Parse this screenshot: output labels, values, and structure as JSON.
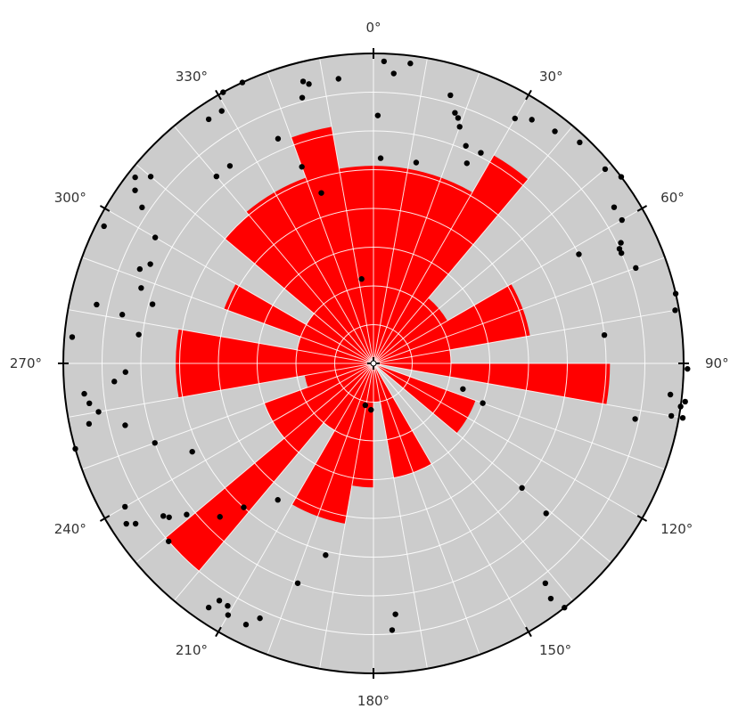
{
  "chart_data": {
    "type": "polar-rose",
    "title": "",
    "angular_unit": "degrees",
    "zero_direction": "top",
    "direction": "clockwise",
    "sector_width_deg": 10,
    "radial_rings": [
      1,
      2,
      3,
      4,
      5,
      6,
      7,
      8
    ],
    "radial_max": 8,
    "angle_tick_labels": [
      "0°",
      "30°",
      "60°",
      "90°",
      "120°",
      "150°",
      "180°",
      "210°",
      "240°",
      "270°",
      "300°",
      "330°"
    ],
    "angle_ticks_deg": [
      0,
      30,
      60,
      90,
      120,
      150,
      180,
      210,
      240,
      270,
      300,
      330
    ],
    "grid": true,
    "sectors": [
      {
        "start": 0,
        "end": 10,
        "value": 5.1
      },
      {
        "start": 10,
        "end": 20,
        "value": 5.1
      },
      {
        "start": 20,
        "end": 30,
        "value": 5.1
      },
      {
        "start": 30,
        "end": 40,
        "value": 6.2
      },
      {
        "start": 40,
        "end": 50,
        "value": 2.2
      },
      {
        "start": 50,
        "end": 60,
        "value": 2.2
      },
      {
        "start": 60,
        "end": 70,
        "value": 4.1
      },
      {
        "start": 70,
        "end": 80,
        "value": 4.1
      },
      {
        "start": 80,
        "end": 90,
        "value": 2.0
      },
      {
        "start": 90,
        "end": 100,
        "value": 6.1
      },
      {
        "start": 110,
        "end": 120,
        "value": 2.8
      },
      {
        "start": 120,
        "end": 130,
        "value": 2.8
      },
      {
        "start": 150,
        "end": 160,
        "value": 3.0
      },
      {
        "start": 160,
        "end": 170,
        "value": 3.0
      },
      {
        "start": 170,
        "end": 180,
        "value": 1.0
      },
      {
        "start": 180,
        "end": 190,
        "value": 3.2
      },
      {
        "start": 190,
        "end": 200,
        "value": 4.2
      },
      {
        "start": 200,
        "end": 210,
        "value": 4.2
      },
      {
        "start": 210,
        "end": 220,
        "value": 2.0
      },
      {
        "start": 220,
        "end": 230,
        "value": 7.0
      },
      {
        "start": 230,
        "end": 240,
        "value": 3.0
      },
      {
        "start": 240,
        "end": 250,
        "value": 3.0
      },
      {
        "start": 250,
        "end": 260,
        "value": 1.8
      },
      {
        "start": 260,
        "end": 270,
        "value": 5.1
      },
      {
        "start": 270,
        "end": 280,
        "value": 5.1
      },
      {
        "start": 280,
        "end": 290,
        "value": 2.0
      },
      {
        "start": 290,
        "end": 300,
        "value": 4.1
      },
      {
        "start": 300,
        "end": 310,
        "value": 2.0
      },
      {
        "start": 310,
        "end": 320,
        "value": 5.0
      },
      {
        "start": 320,
        "end": 330,
        "value": 5.1
      },
      {
        "start": 330,
        "end": 340,
        "value": 5.1
      },
      {
        "start": 340,
        "end": 350,
        "value": 6.2
      },
      {
        "start": 350,
        "end": 360,
        "value": 5.1
      }
    ],
    "points": [
      {
        "theta": 2,
        "r": 7.8
      },
      {
        "theta": 4,
        "r": 7.5
      },
      {
        "theta": 7,
        "r": 7.8
      },
      {
        "theta": 1,
        "r": 6.4
      },
      {
        "theta": 2,
        "r": 5.3
      },
      {
        "theta": 12,
        "r": 5.3
      },
      {
        "theta": 16,
        "r": 7.2
      },
      {
        "theta": 18,
        "r": 6.8
      },
      {
        "theta": 19,
        "r": 6.7
      },
      {
        "theta": 20,
        "r": 6.5
      },
      {
        "theta": 23,
        "r": 6.1
      },
      {
        "theta": 25,
        "r": 5.7
      },
      {
        "theta": 27,
        "r": 6.1
      },
      {
        "theta": 30,
        "r": 7.3
      },
      {
        "theta": 33,
        "r": 7.5
      },
      {
        "theta": 38,
        "r": 7.6
      },
      {
        "theta": 43,
        "r": 7.8
      },
      {
        "theta": 50,
        "r": 7.8
      },
      {
        "theta": 53,
        "r": 8.0
      },
      {
        "theta": 57,
        "r": 7.4
      },
      {
        "theta": 60,
        "r": 7.4
      },
      {
        "theta": 62,
        "r": 6.0
      },
      {
        "theta": 64,
        "r": 7.1
      },
      {
        "theta": 65,
        "r": 7.0
      },
      {
        "theta": 66,
        "r": 7.0
      },
      {
        "theta": 70,
        "r": 7.2
      },
      {
        "theta": 77,
        "r": 8.0
      },
      {
        "theta": 80,
        "r": 7.9
      },
      {
        "theta": 83,
        "r": 6.0
      },
      {
        "theta": 91,
        "r": 8.1
      },
      {
        "theta": 96,
        "r": 7.7
      },
      {
        "theta": 97,
        "r": 8.1
      },
      {
        "theta": 98,
        "r": 8.0
      },
      {
        "theta": 100,
        "r": 8.1
      },
      {
        "theta": 100,
        "r": 7.8
      },
      {
        "theta": 102,
        "r": 6.9
      },
      {
        "theta": 106,
        "r": 2.4
      },
      {
        "theta": 110,
        "r": 3.0
      },
      {
        "theta": 130,
        "r": 5.0
      },
      {
        "theta": 131,
        "r": 5.9
      },
      {
        "theta": 142,
        "r": 7.2
      },
      {
        "theta": 143,
        "r": 7.6
      },
      {
        "theta": 142,
        "r": 8.0
      },
      {
        "theta": 176,
        "r": 6.9
      },
      {
        "theta": 175,
        "r": 6.5
      },
      {
        "theta": 183,
        "r": 1.2
      },
      {
        "theta": 191,
        "r": 1.1
      },
      {
        "theta": 194,
        "r": 5.1
      },
      {
        "theta": 199,
        "r": 6.0
      },
      {
        "theta": 204,
        "r": 7.2
      },
      {
        "theta": 206,
        "r": 7.5
      },
      {
        "theta": 210,
        "r": 7.5
      },
      {
        "theta": 211,
        "r": 7.3
      },
      {
        "theta": 213,
        "r": 7.3
      },
      {
        "theta": 214,
        "r": 7.6
      },
      {
        "theta": 215,
        "r": 4.3
      },
      {
        "theta": 222,
        "r": 5.0
      },
      {
        "theta": 225,
        "r": 5.6
      },
      {
        "theta": 229,
        "r": 7.0
      },
      {
        "theta": 231,
        "r": 6.2
      },
      {
        "theta": 233,
        "r": 6.6
      },
      {
        "theta": 234,
        "r": 6.7
      },
      {
        "theta": 236,
        "r": 7.4
      },
      {
        "theta": 237,
        "r": 7.6
      },
      {
        "theta": 240,
        "r": 7.4
      },
      {
        "theta": 244,
        "r": 5.2
      },
      {
        "theta": 250,
        "r": 6.0
      },
      {
        "theta": 254,
        "r": 8.0
      },
      {
        "theta": 256,
        "r": 6.6
      },
      {
        "theta": 258,
        "r": 7.5
      },
      {
        "theta": 260,
        "r": 7.2
      },
      {
        "theta": 262,
        "r": 7.4
      },
      {
        "theta": 264,
        "r": 7.5
      },
      {
        "theta": 266,
        "r": 6.7
      },
      {
        "theta": 268,
        "r": 6.4
      },
      {
        "theta": 275,
        "r": 7.8
      },
      {
        "theta": 277,
        "r": 6.1
      },
      {
        "theta": 281,
        "r": 6.6
      },
      {
        "theta": 282,
        "r": 7.3
      },
      {
        "theta": 285,
        "r": 5.9
      },
      {
        "theta": 288,
        "r": 6.3
      },
      {
        "theta": 292,
        "r": 6.5
      },
      {
        "theta": 294,
        "r": 6.3
      },
      {
        "theta": 297,
        "r": 7.8
      },
      {
        "theta": 300,
        "r": 6.5
      },
      {
        "theta": 304,
        "r": 7.2
      },
      {
        "theta": 306,
        "r": 7.6
      },
      {
        "theta": 308,
        "r": 7.8
      },
      {
        "theta": 310,
        "r": 7.5
      },
      {
        "theta": 320,
        "r": 6.3
      },
      {
        "theta": 324,
        "r": 6.3
      },
      {
        "theta": 326,
        "r": 7.6
      },
      {
        "theta": 329,
        "r": 7.6
      },
      {
        "theta": 331,
        "r": 8.0
      },
      {
        "theta": 335,
        "r": 8.0
      },
      {
        "theta": 337,
        "r": 6.3
      },
      {
        "theta": 340,
        "r": 5.4
      },
      {
        "theta": 343,
        "r": 4.6
      },
      {
        "theta": 345,
        "r": 7.1
      },
      {
        "theta": 346,
        "r": 7.5
      },
      {
        "theta": 347,
        "r": 7.4
      },
      {
        "theta": 353,
        "r": 7.4
      },
      {
        "theta": 352,
        "r": 2.2
      }
    ],
    "colors": {
      "plot_background": "#cccccc",
      "bar_fill": "#ff0000",
      "grid": "#ffffff",
      "outer_circle": "#000000",
      "points": "#000000",
      "label": "#333333"
    }
  }
}
